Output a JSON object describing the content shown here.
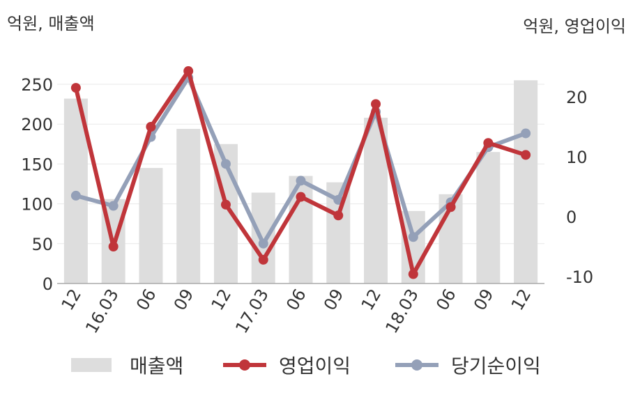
{
  "units": {
    "left": "억원, 매출액",
    "right": "억원, 영업이익"
  },
  "chart_data": {
    "type": "bar+line",
    "categories": [
      "12",
      "16.03",
      "06",
      "09",
      "12",
      "17.03",
      "06",
      "09",
      "12",
      "18.03",
      "06",
      "09",
      "12"
    ],
    "series": [
      {
        "name": "매출액",
        "type": "bar",
        "axis": "left",
        "color": "#dddddd",
        "values": [
          232,
          106,
          145,
          194,
          175,
          114,
          135,
          127,
          208,
          91,
          112,
          165,
          255
        ]
      },
      {
        "name": "영업이익",
        "type": "line",
        "axis": "right",
        "color": "#c0353a",
        "values": [
          21.5,
          -5,
          15,
          24.3,
          2,
          -7.2,
          3.3,
          0.2,
          18.8,
          -9.6,
          1.6,
          12.3,
          10.3
        ]
      },
      {
        "name": "당기순이익",
        "type": "line",
        "axis": "right",
        "color": "#94a0b8",
        "values": [
          3.5,
          1.8,
          13.3,
          23.2,
          8.8,
          -4.5,
          6,
          2.8,
          17.5,
          -3.4,
          2.4,
          11.6,
          13.9
        ]
      }
    ],
    "left_axis": {
      "ylim": [
        0,
        250
      ],
      "ticks": [
        0,
        50,
        100,
        150,
        200,
        250
      ]
    },
    "right_axis": {
      "ylim": [
        -10,
        20
      ],
      "ticks": [
        -10,
        0,
        10,
        20
      ]
    },
    "grid": true,
    "legend": "bottom"
  }
}
